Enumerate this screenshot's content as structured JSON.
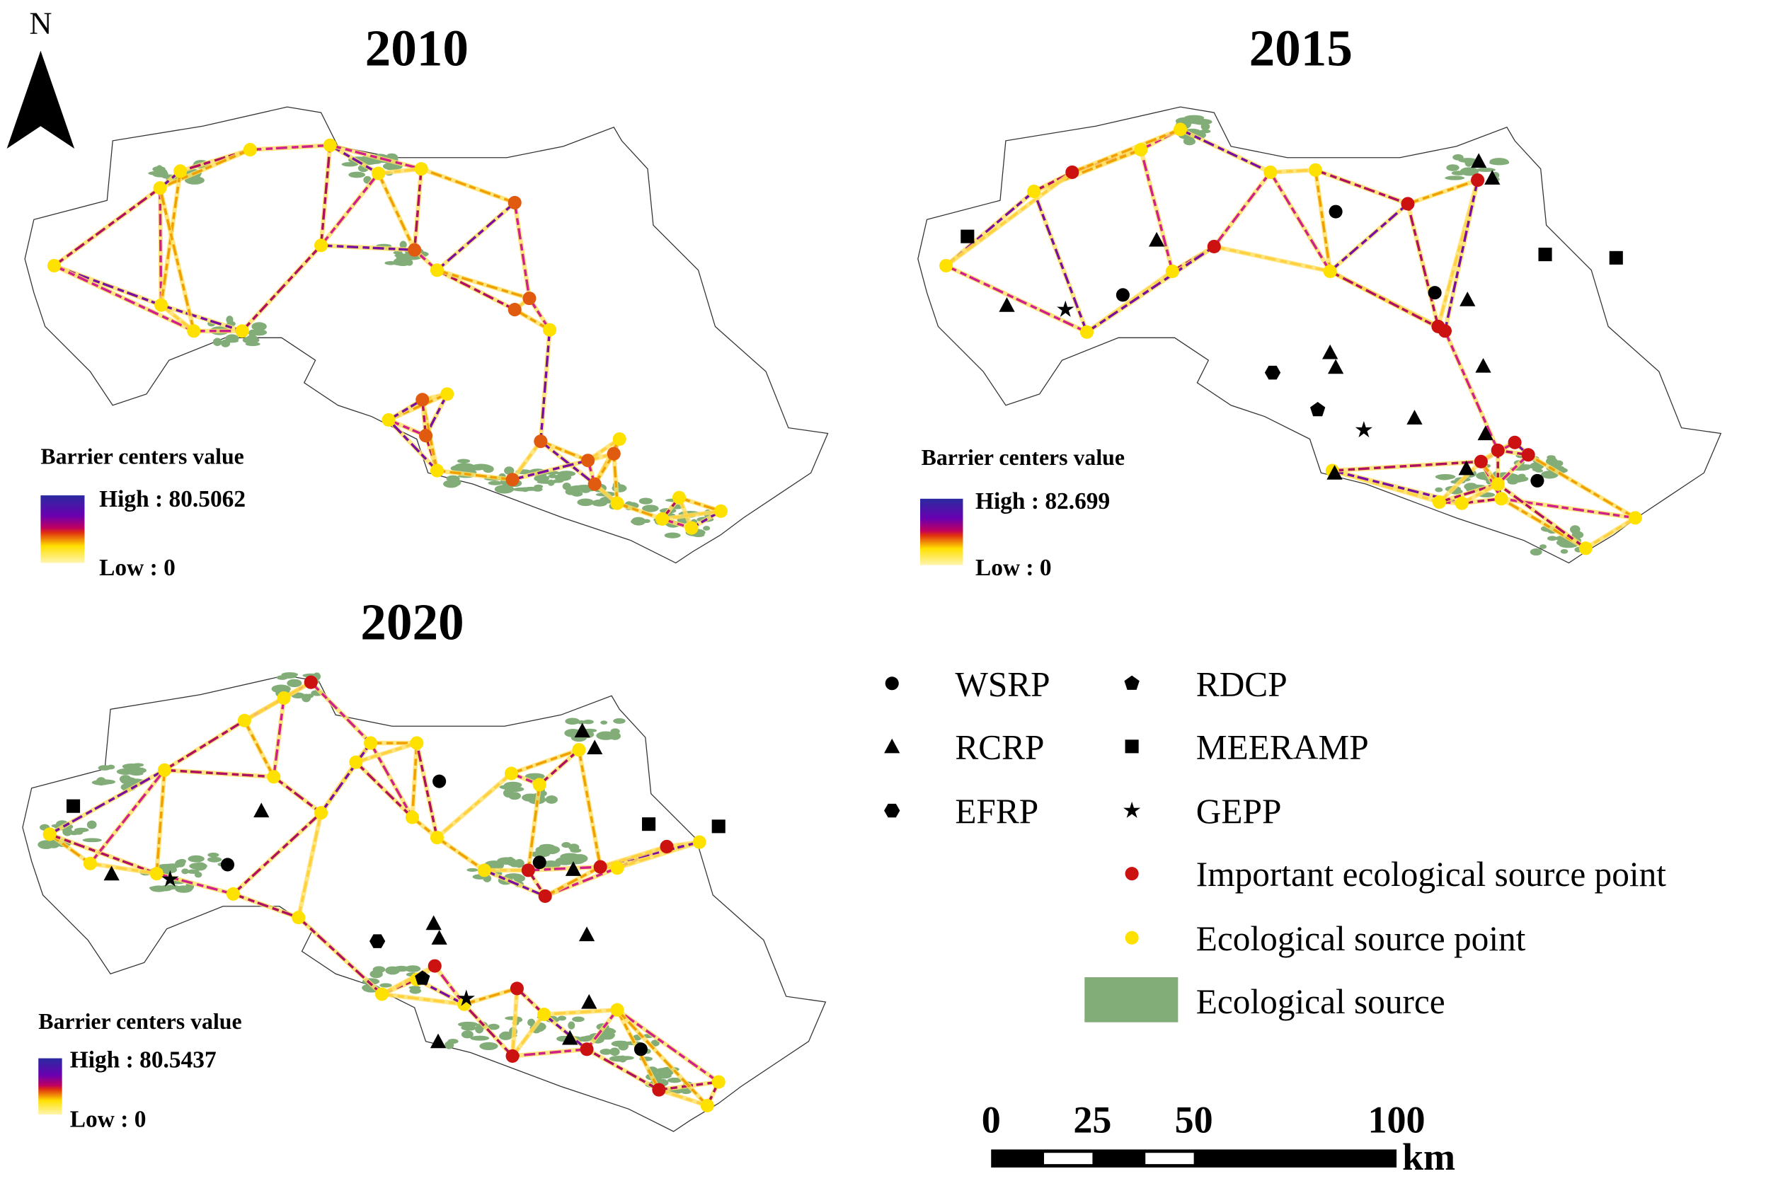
{
  "north": {
    "label": "N",
    "icon": "north-arrow-icon"
  },
  "panels": [
    {
      "year": "2010",
      "legend": {
        "title": "Barrier centers value",
        "high": "High : 80.5062",
        "low": "Low : 0"
      }
    },
    {
      "year": "2015",
      "legend": {
        "title": "Barrier centers value",
        "high": "High : 82.699",
        "low": "Low : 0"
      }
    },
    {
      "year": "2020",
      "legend": {
        "title": "Barrier centers value",
        "high": "High : 80.5437",
        "low": "Low : 0"
      }
    }
  ],
  "legend": {
    "items": [
      {
        "label": "WSRP",
        "symbol": "circle"
      },
      {
        "label": "RDCP",
        "symbol": "pentagon"
      },
      {
        "label": "RCRP",
        "symbol": "triangle"
      },
      {
        "label": "MEERAMP",
        "symbol": "square"
      },
      {
        "label": "EFRP",
        "symbol": "hexagon"
      },
      {
        "label": "GEPP",
        "symbol": "star"
      },
      {
        "label": "Important ecological source point",
        "symbol": "dot",
        "color": "#cc1111"
      },
      {
        "label": "Ecological source point",
        "symbol": "dot",
        "color": "#ffe100"
      },
      {
        "label": "Ecological source",
        "symbol": "patch",
        "color": "#82ad78"
      }
    ]
  },
  "scalebar": {
    "ticks": [
      "0",
      "25",
      "50",
      "100"
    ],
    "unit": "km"
  },
  "colors": {
    "gradient": [
      "#2a2aa0",
      "#6a00b0",
      "#c00060",
      "#e03010",
      "#ffd000",
      "#fff5a0"
    ],
    "orange_point": "#e05a10"
  }
}
